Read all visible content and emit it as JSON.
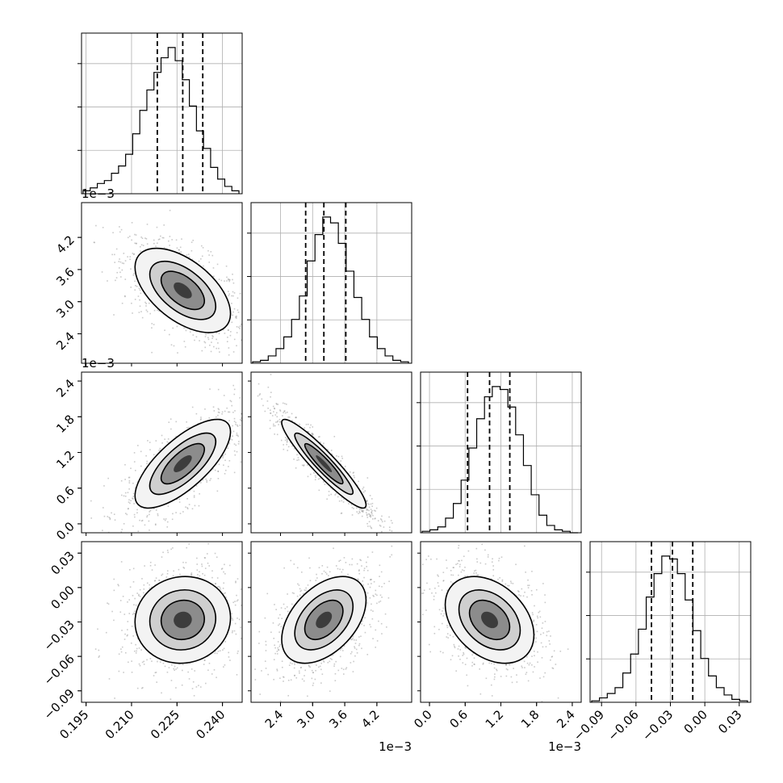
{
  "chart_data": {
    "type": "corner",
    "grid": true,
    "n_params": 4,
    "params": [
      {
        "range": [
          0.1935,
          0.2465
        ],
        "ticks": [
          0.195,
          0.21,
          0.225,
          0.24
        ],
        "tick_labels": [
          "0.195",
          "0.210",
          "0.225",
          "0.240"
        ],
        "offset_text": ""
      },
      {
        "range": [
          0.00185,
          0.00485
        ],
        "ticks": [
          0.0024,
          0.003,
          0.0036,
          0.0042
        ],
        "tick_labels": [
          "2.4",
          "3.0",
          "3.6",
          "4.2"
        ],
        "offset_text": "1e−3"
      },
      {
        "range": [
          -0.00015,
          0.00255
        ],
        "ticks": [
          0.0,
          0.0006,
          0.0012,
          0.0018,
          0.0024
        ],
        "tick_labels": [
          "0.0",
          "0.6",
          "1.2",
          "1.8",
          "2.4"
        ],
        "offset_text": "1e−3"
      },
      {
        "range": [
          -0.1,
          0.04
        ],
        "ticks": [
          -0.09,
          -0.06,
          -0.03,
          0.0,
          0.03
        ],
        "tick_labels": [
          "−0.09",
          "−0.06",
          "−0.03",
          "0.00",
          "0.03"
        ],
        "offset_text": ""
      }
    ],
    "quantiles": [
      [
        0.2185,
        0.2269,
        0.2335
      ],
      [
        0.00287,
        0.00321,
        0.00362
      ],
      [
        0.00064,
        0.00101,
        0.00135
      ],
      [
        -0.0465,
        -0.0282,
        -0.0105
      ]
    ],
    "histograms": [
      [
        0.02,
        0.04,
        0.07,
        0.09,
        0.14,
        0.19,
        0.27,
        0.41,
        0.57,
        0.71,
        0.83,
        0.93,
        1.0,
        0.91,
        0.78,
        0.6,
        0.43,
        0.31,
        0.18,
        0.1,
        0.05,
        0.02
      ],
      [
        0.01,
        0.02,
        0.05,
        0.1,
        0.18,
        0.3,
        0.46,
        0.7,
        0.88,
        1.0,
        0.96,
        0.82,
        0.63,
        0.45,
        0.3,
        0.18,
        0.1,
        0.05,
        0.02,
        0.01
      ],
      [
        0.01,
        0.02,
        0.04,
        0.1,
        0.2,
        0.36,
        0.58,
        0.78,
        0.93,
        1.0,
        0.98,
        0.86,
        0.67,
        0.46,
        0.26,
        0.12,
        0.05,
        0.02,
        0.01,
        0.0
      ],
      [
        0.01,
        0.03,
        0.06,
        0.1,
        0.2,
        0.33,
        0.5,
        0.72,
        0.88,
        1.0,
        0.98,
        0.88,
        0.7,
        0.49,
        0.3,
        0.18,
        0.1,
        0.05,
        0.02,
        0.01
      ]
    ],
    "pairs": [
      {
        "x": 0,
        "y": 1,
        "corr": -0.55
      },
      {
        "x": 0,
        "y": 2,
        "corr": 0.72
      },
      {
        "x": 1,
        "y": 2,
        "corr": -0.93
      },
      {
        "x": 0,
        "y": 3,
        "corr": 0.05
      },
      {
        "x": 1,
        "y": 3,
        "corr": 0.45
      },
      {
        "x": 2,
        "y": 3,
        "corr": -0.35
      }
    ],
    "contour_levels": [
      0.5,
      1.0,
      1.5,
      2.0
    ]
  }
}
